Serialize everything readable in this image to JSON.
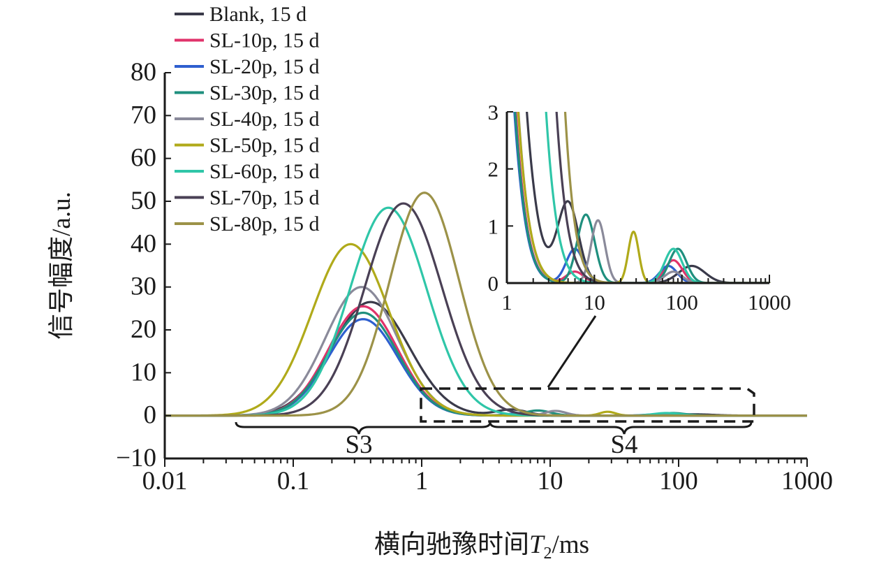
{
  "chart_data": [
    {
      "type": "line",
      "xscale": "log",
      "xlim": [
        0.01,
        1000
      ],
      "ylim": [
        -10,
        80
      ],
      "x_ticks": [
        "0.01",
        "0.1",
        "1",
        "10",
        "100",
        "1000"
      ],
      "y_ticks": [
        "−10",
        "0",
        "10",
        "20",
        "30",
        "40",
        "50",
        "60",
        "70",
        "80"
      ],
      "xlabel_prefix": "横向驰豫时间",
      "xlabel_symbol": "T",
      "xlabel_subscript": "2",
      "xlabel_unit": "/ms",
      "ylabel": "信号幅度/a.u.",
      "legend_position": "top-left",
      "region_labels": [
        "S3",
        "S4"
      ],
      "series": [
        {
          "name": "Blank, 15 d",
          "color": "#3a3a4a",
          "peaks": [
            {
              "center": 0.4,
              "amplitude": 26.5,
              "width": 0.3
            },
            {
              "center": 5,
              "amplitude": 1.4,
              "width": 0.12
            },
            {
              "center": 130,
              "amplitude": 0.3,
              "width": 0.15
            }
          ]
        },
        {
          "name": "SL-10p, 15 d",
          "color": "#e0336b",
          "peaks": [
            {
              "center": 0.35,
              "amplitude": 25.5,
              "width": 0.27
            },
            {
              "center": 6,
              "amplitude": 0.2,
              "width": 0.1
            },
            {
              "center": 80,
              "amplitude": 0.4,
              "width": 0.1
            }
          ]
        },
        {
          "name": "SL-20p, 15 d",
          "color": "#2e5fcf",
          "peaks": [
            {
              "center": 0.35,
              "amplitude": 22.5,
              "width": 0.27
            },
            {
              "center": 6,
              "amplitude": 0.6,
              "width": 0.1
            },
            {
              "center": 70,
              "amplitude": 0.3,
              "width": 0.1
            }
          ]
        },
        {
          "name": "SL-30p, 15 d",
          "color": "#1f8f7e",
          "peaks": [
            {
              "center": 0.35,
              "amplitude": 24,
              "width": 0.27
            },
            {
              "center": 8,
              "amplitude": 1.2,
              "width": 0.1
            },
            {
              "center": 90,
              "amplitude": 0.6,
              "width": 0.1
            }
          ]
        },
        {
          "name": "SL-40p, 15 d",
          "color": "#8a8a9a",
          "peaks": [
            {
              "center": 0.34,
              "amplitude": 30,
              "width": 0.28
            },
            {
              "center": 11,
              "amplitude": 1.1,
              "width": 0.08
            },
            {
              "center": 80,
              "amplitude": 0.2,
              "width": 0.1
            }
          ]
        },
        {
          "name": "SL-50p, 15 d",
          "color": "#b0aa1a",
          "peaks": [
            {
              "center": 0.28,
              "amplitude": 40,
              "width": 0.3
            },
            {
              "center": 28,
              "amplitude": 0.9,
              "width": 0.06
            }
          ]
        },
        {
          "name": "SL-60p, 15 d",
          "color": "#2fc6a8",
          "peaks": [
            {
              "center": 0.55,
              "amplitude": 48.5,
              "width": 0.3
            },
            {
              "center": 80,
              "amplitude": 0.6,
              "width": 0.1
            }
          ]
        },
        {
          "name": "SL-70p, 15 d",
          "color": "#4a4055",
          "peaks": [
            {
              "center": 0.72,
              "amplitude": 49.5,
              "width": 0.3
            }
          ]
        },
        {
          "name": "SL-80p, 15 d",
          "color": "#9c9248",
          "peaks": [
            {
              "center": 1.05,
              "amplitude": 52,
              "width": 0.27
            }
          ]
        }
      ]
    },
    {
      "type": "line",
      "role": "inset",
      "xscale": "log",
      "xlim": [
        1,
        1000
      ],
      "ylim": [
        0,
        3
      ],
      "x_ticks": [
        "1",
        "10",
        "100",
        "1000"
      ],
      "y_ticks": [
        "0",
        "1",
        "2",
        "3"
      ]
    }
  ]
}
